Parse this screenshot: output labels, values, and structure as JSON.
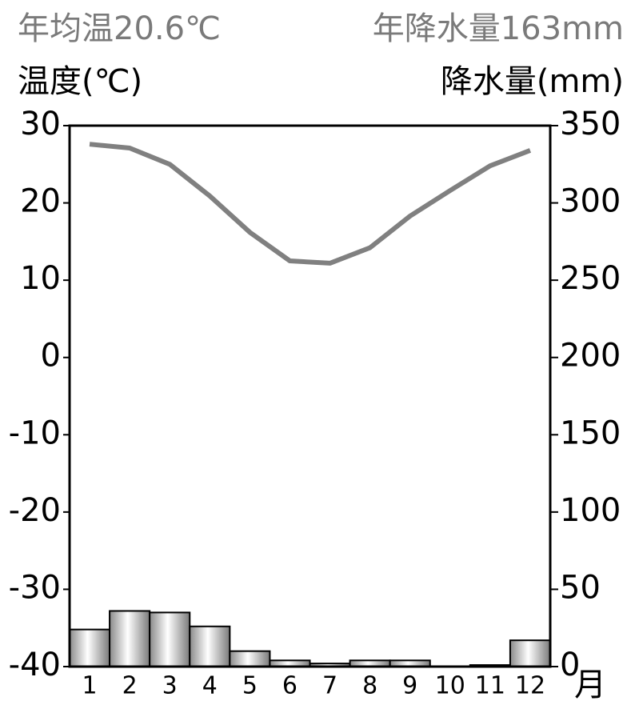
{
  "chart_data": {
    "type": "climate",
    "title": "年均温20.6℃",
    "subtitle": "年降水量163mm",
    "y_label": "温度(℃)",
    "y2_label": "降水量(mm)",
    "x_label": "月",
    "categories": [
      "1",
      "2",
      "3",
      "4",
      "5",
      "6",
      "7",
      "8",
      "9",
      "10",
      "11",
      "12"
    ],
    "series": [
      {
        "name": "温度",
        "type": "line",
        "color": "#808080",
        "values": [
          27.6,
          27.1,
          25.0,
          20.9,
          16.2,
          12.5,
          12.2,
          14.2,
          18.3,
          21.6,
          24.8,
          26.8
        ]
      },
      {
        "name": "降水量",
        "type": "bar",
        "axis": "y2",
        "color": "#a0a0a0",
        "values": [
          24,
          36,
          35,
          26,
          10,
          4,
          2,
          4,
          4,
          0,
          1,
          17
        ]
      }
    ],
    "ylim": [
      -40,
      30
    ],
    "yticks": [
      -40,
      -30,
      -20,
      -10,
      0,
      10,
      20,
      30
    ],
    "y2lim": [
      0,
      350
    ],
    "y2ticks": [
      0,
      50,
      100,
      150,
      200,
      250,
      300,
      350
    ]
  }
}
